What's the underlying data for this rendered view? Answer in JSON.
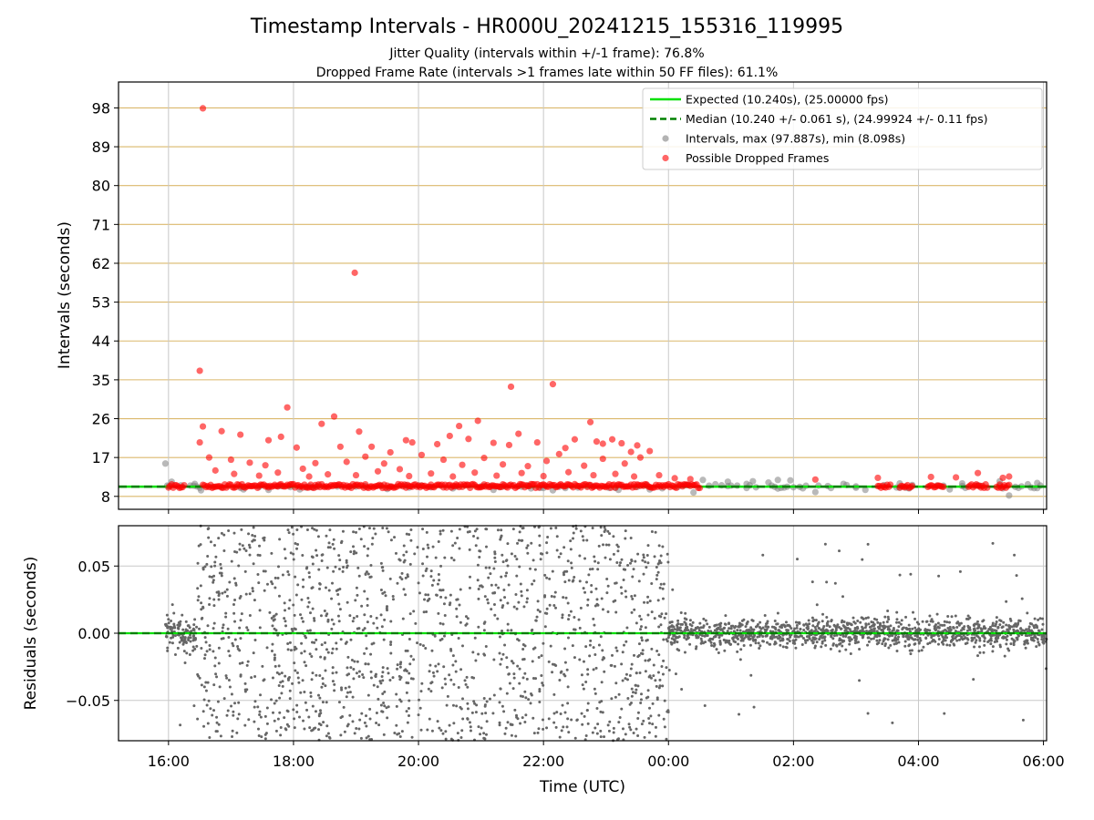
{
  "chart_data": {
    "type": "scatter",
    "title": "Timestamp Intervals - HR000U_20241215_155316_119995",
    "subtitle_lines": [
      "Jitter Quality (intervals within +/-1 frame): 76.8%",
      "Dropped Frame Rate (intervals >1 frames late within 50 FF files): 61.1%"
    ],
    "x_axis": {
      "label": "Time (UTC)",
      "range_hours": [
        15.2,
        30.05
      ],
      "ticks": [
        {
          "value": 16,
          "label": "16:00"
        },
        {
          "value": 18,
          "label": "18:00"
        },
        {
          "value": 20,
          "label": "20:00"
        },
        {
          "value": 22,
          "label": "22:00"
        },
        {
          "value": 24,
          "label": "00:00"
        },
        {
          "value": 26,
          "label": "02:00"
        },
        {
          "value": 28,
          "label": "04:00"
        },
        {
          "value": 30,
          "label": "06:00"
        }
      ]
    },
    "top_panel": {
      "ylabel": "Intervals (seconds)",
      "ylim": [
        5,
        104
      ],
      "yticks": [
        8,
        17,
        26,
        35,
        44,
        53,
        62,
        71,
        80,
        89,
        98
      ],
      "gridline_color": "#dbb86b",
      "expected": {
        "value": 10.24,
        "color": "#00e000",
        "style": "solid"
      },
      "median": {
        "value": 10.24,
        "color": "#008000",
        "style": "dashed"
      },
      "intervals_max": 97.887,
      "intervals_min": 8.098,
      "points_color": "#808080",
      "dropped_color": "#ff0000",
      "dropped_points": [
        [
          16.55,
          97.9
        ],
        [
          18.98,
          59.8
        ],
        [
          16.5,
          37.1
        ],
        [
          21.48,
          33.4
        ],
        [
          22.15,
          34.0
        ],
        [
          17.9,
          28.6
        ],
        [
          18.65,
          26.5
        ],
        [
          18.45,
          24.8
        ],
        [
          20.95,
          25.5
        ],
        [
          22.75,
          25.2
        ],
        [
          16.55,
          24.2
        ],
        [
          16.85,
          23.1
        ],
        [
          17.15,
          22.3
        ],
        [
          19.05,
          23.0
        ],
        [
          19.8,
          21.0
        ],
        [
          20.5,
          22.0
        ],
        [
          20.65,
          24.3
        ],
        [
          21.6,
          22.5
        ],
        [
          21.9,
          20.5
        ],
        [
          22.5,
          21.2
        ],
        [
          22.85,
          20.7
        ],
        [
          23.25,
          20.3
        ],
        [
          23.5,
          19.8
        ],
        [
          23.7,
          18.5
        ],
        [
          16.5,
          20.5
        ],
        [
          17.6,
          21.0
        ],
        [
          17.8,
          21.8
        ],
        [
          18.05,
          19.3
        ],
        [
          18.75,
          19.5
        ],
        [
          19.25,
          19.5
        ],
        [
          19.55,
          18.2
        ],
        [
          19.9,
          20.5
        ],
        [
          20.3,
          20.1
        ],
        [
          20.8,
          21.3
        ],
        [
          21.2,
          20.4
        ],
        [
          21.45,
          19.9
        ],
        [
          22.35,
          19.2
        ],
        [
          22.95,
          20.2
        ],
        [
          23.1,
          21.2
        ],
        [
          23.4,
          18.3
        ],
        [
          16.65,
          17.0
        ],
        [
          17.0,
          16.5
        ],
        [
          17.3,
          15.8
        ],
        [
          17.55,
          15.2
        ],
        [
          18.15,
          14.4
        ],
        [
          18.35,
          15.7
        ],
        [
          18.85,
          16.0
        ],
        [
          19.15,
          17.2
        ],
        [
          19.45,
          15.6
        ],
        [
          19.7,
          14.3
        ],
        [
          20.05,
          17.6
        ],
        [
          20.4,
          16.5
        ],
        [
          20.7,
          15.3
        ],
        [
          21.05,
          16.9
        ],
        [
          21.35,
          15.4
        ],
        [
          21.75,
          15.0
        ],
        [
          22.05,
          16.2
        ],
        [
          22.25,
          17.8
        ],
        [
          22.65,
          15.1
        ],
        [
          22.95,
          16.7
        ],
        [
          23.3,
          15.6
        ],
        [
          23.55,
          17.0
        ],
        [
          16.75,
          14.0
        ],
        [
          17.05,
          13.2
        ],
        [
          17.45,
          12.8
        ],
        [
          17.75,
          13.5
        ],
        [
          18.25,
          12.6
        ],
        [
          18.55,
          13.1
        ],
        [
          19.0,
          12.9
        ],
        [
          19.35,
          13.8
        ],
        [
          19.85,
          12.7
        ],
        [
          20.2,
          13.3
        ],
        [
          20.55,
          12.6
        ],
        [
          20.9,
          13.5
        ],
        [
          21.25,
          12.8
        ],
        [
          21.65,
          13.4
        ],
        [
          22.0,
          12.7
        ],
        [
          22.4,
          13.6
        ],
        [
          22.8,
          12.9
        ],
        [
          23.15,
          13.2
        ],
        [
          23.45,
          12.6
        ],
        [
          23.85,
          12.9
        ],
        [
          24.1,
          12.2
        ],
        [
          24.35,
          12.0
        ],
        [
          26.35,
          11.9
        ],
        [
          28.2,
          12.5
        ],
        [
          27.35,
          12.3
        ],
        [
          28.6,
          12.4
        ],
        [
          28.95,
          13.4
        ],
        [
          29.35,
          12.3
        ],
        [
          29.45,
          12.6
        ]
      ],
      "dropped_band_ranges": [
        [
          16.0,
          16.25
        ],
        [
          16.55,
          24.5
        ],
        [
          27.35,
          27.55
        ],
        [
          27.7,
          27.9
        ],
        [
          28.15,
          28.4
        ],
        [
          28.8,
          29.1
        ],
        [
          29.25,
          29.45
        ]
      ],
      "normal_points": [
        [
          15.95,
          15.6
        ],
        [
          15.98,
          10.5
        ],
        [
          16.05,
          11.4
        ],
        [
          16.35,
          10.5
        ],
        [
          16.42,
          10.9
        ],
        [
          16.52,
          9.4
        ],
        [
          17.2,
          9.6
        ],
        [
          17.6,
          9.5
        ],
        [
          18.1,
          9.6
        ],
        [
          19.5,
          9.7
        ],
        [
          21.2,
          9.5
        ],
        [
          22.15,
          9.4
        ],
        [
          23.2,
          9.5
        ],
        [
          23.7,
          9.6
        ],
        [
          24.4,
          8.9
        ],
        [
          24.55,
          11.8
        ],
        [
          24.75,
          10.8
        ],
        [
          24.95,
          11.4
        ],
        [
          25.1,
          10.5
        ],
        [
          25.25,
          10.9
        ],
        [
          25.35,
          11.5
        ],
        [
          25.6,
          11.2
        ],
        [
          25.7,
          10.2
        ],
        [
          25.75,
          9.8
        ],
        [
          25.95,
          11.7
        ],
        [
          26.1,
          10.2
        ],
        [
          26.35,
          9.0
        ],
        [
          26.55,
          10.4
        ],
        [
          26.8,
          10.9
        ],
        [
          27.0,
          10.3
        ],
        [
          27.15,
          9.5
        ],
        [
          27.45,
          10.6
        ],
        [
          27.7,
          11.0
        ],
        [
          27.8,
          10.0
        ],
        [
          28.3,
          10.5
        ],
        [
          28.5,
          9.6
        ],
        [
          28.7,
          11.0
        ],
        [
          29.0,
          10.4
        ],
        [
          29.3,
          11.5
        ],
        [
          29.45,
          8.2
        ],
        [
          29.55,
          10.2
        ],
        [
          29.75,
          10.8
        ],
        [
          29.9,
          11.1
        ],
        [
          25.75,
          11.8
        ]
      ]
    },
    "bottom_panel": {
      "ylabel": "Residuals (seconds)",
      "ylim": [
        -0.08,
        0.08
      ],
      "yticks": [
        {
          "value": 0.05,
          "label": "0.05"
        },
        {
          "value": 0.0,
          "label": "0.00"
        },
        {
          "value": -0.05,
          "label": "−0.05"
        }
      ],
      "grid": true,
      "points_color": "#666666",
      "zero_line_color": "#00e000",
      "segments": [
        {
          "start": 15.95,
          "end": 16.45,
          "spread": 0.012
        },
        {
          "start": 16.45,
          "end": 24.0,
          "spread": 0.06
        },
        {
          "start": 24.0,
          "end": 30.05,
          "spread": 0.01
        }
      ]
    },
    "legend": {
      "position": "top-right",
      "entries": [
        {
          "label": "Expected (10.240s), (25.00000 fps)",
          "marker": "line",
          "color": "#00e000",
          "style": "solid"
        },
        {
          "label": "Median (10.240 +/- 0.061 s), (24.99924 +/- 0.11 fps)",
          "marker": "line",
          "color": "#008000",
          "style": "dashed"
        },
        {
          "label": "Intervals, max (97.887s), min (8.098s)",
          "marker": "dot",
          "color": "#808080"
        },
        {
          "label": "Possible Dropped Frames",
          "marker": "dot",
          "color": "#ff0000"
        }
      ]
    }
  }
}
